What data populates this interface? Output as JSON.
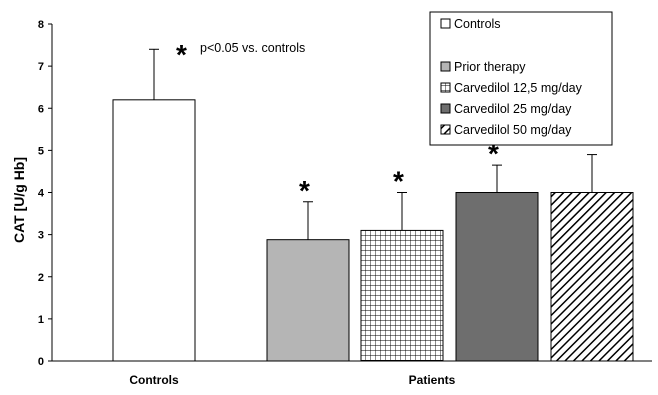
{
  "chart_data": {
    "type": "bar",
    "ylabel": "CAT [U/g Hb]",
    "ylim": [
      0,
      8
    ],
    "y_ticks": [
      "0",
      "1",
      "2",
      "3",
      "4",
      "5",
      "6",
      "7",
      "8"
    ],
    "grid": false,
    "group_labels": [
      "Controls",
      "Patients"
    ],
    "annotation": "p<0.05 vs. controls",
    "significance_marker": "*",
    "legend_position": "top-right",
    "bars": [
      {
        "name": "Controls",
        "group": "Controls",
        "value": 6.2,
        "error": 1.2,
        "fill": "#ffffff",
        "pattern": "none",
        "significant": false
      },
      {
        "name": "Prior therapy",
        "group": "Patients",
        "value": 2.88,
        "error": 0.9,
        "fill": "#b5b5b5",
        "pattern": "none",
        "significant": true
      },
      {
        "name": "Carvedilol 12,5 mg/day",
        "group": "Patients",
        "value": 3.1,
        "error": 0.9,
        "fill": "#ffffff",
        "pattern": "grid",
        "significant": true
      },
      {
        "name": "Carvedilol 25 mg/day",
        "group": "Patients",
        "value": 4.0,
        "error": 0.65,
        "fill": "#6e6e6e",
        "pattern": "none",
        "significant": true
      },
      {
        "name": "Carvedilol 50 mg/day",
        "group": "Patients",
        "value": 4.0,
        "error": 0.9,
        "fill": "#ffffff",
        "pattern": "diagonal",
        "significant": true
      }
    ]
  }
}
